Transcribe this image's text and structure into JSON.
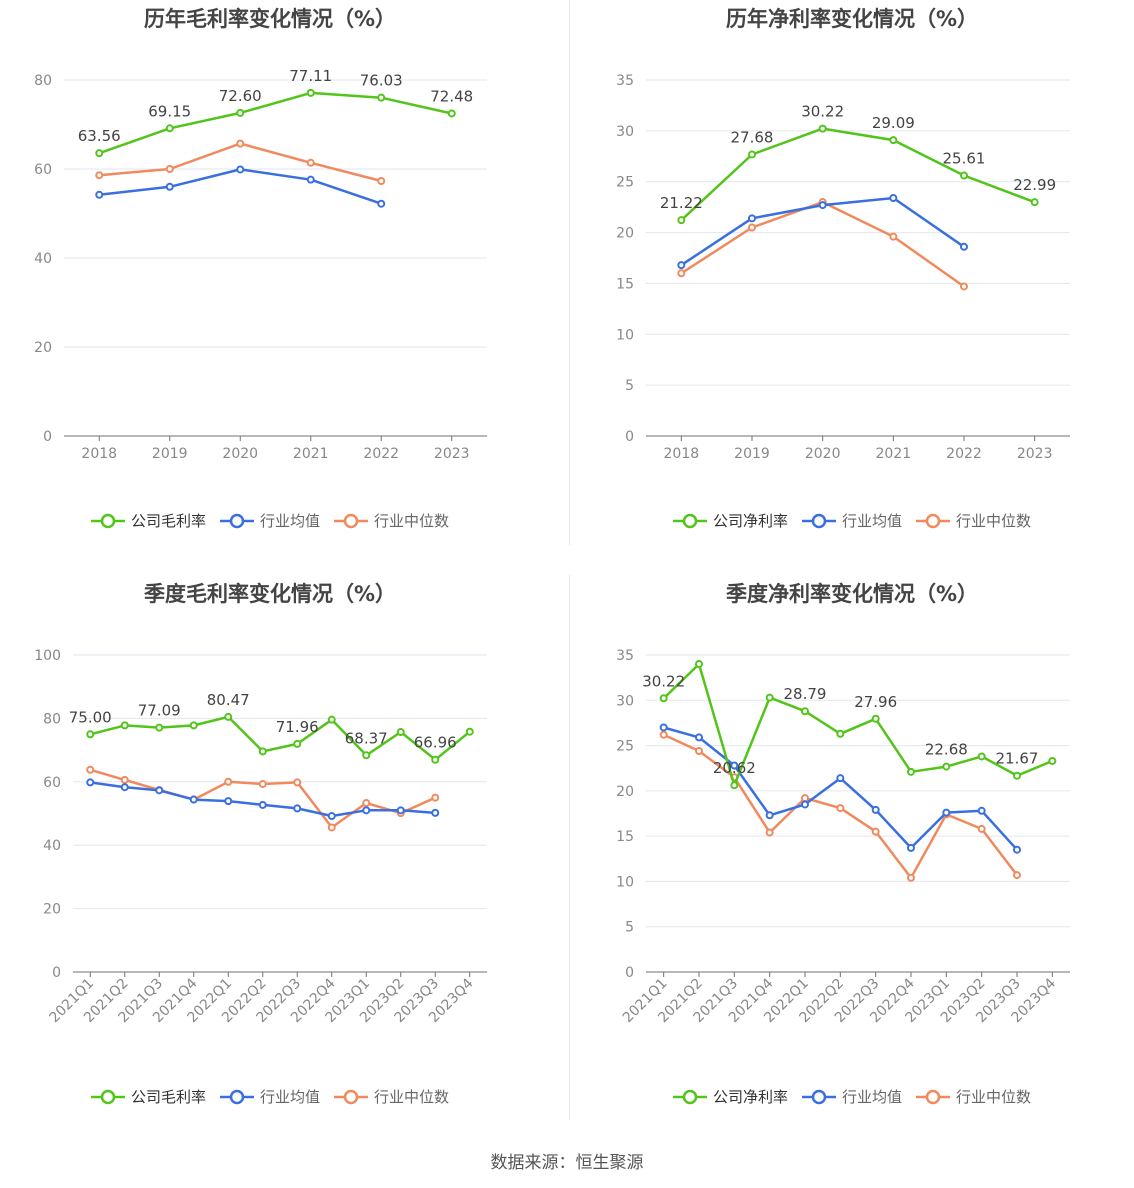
{
  "source": "数据来源：恒生聚源",
  "colors": {
    "company": "#52c41a",
    "average": "#3a6fe0",
    "median": "#f08a5d"
  },
  "chart_data": [
    {
      "type": "line",
      "title": "历年毛利率变化情况（%）",
      "categories": [
        "2018",
        "2019",
        "2020",
        "2021",
        "2022",
        "2023"
      ],
      "ylim": [
        0,
        80
      ],
      "yticks": [
        0,
        20,
        40,
        60,
        80
      ],
      "grid": true,
      "legend_position": "bottom",
      "series": [
        {
          "name": "公司毛利率",
          "role": "company",
          "values": [
            63.56,
            69.15,
            72.6,
            77.11,
            76.03,
            72.48
          ],
          "labels": [
            "63.56",
            "69.15",
            "72.60",
            "77.11",
            "76.03",
            "72.48"
          ]
        },
        {
          "name": "行业均值",
          "role": "average",
          "values": [
            54.2,
            56.0,
            59.9,
            57.6,
            52.2,
            null
          ]
        },
        {
          "name": "行业中位数",
          "role": "median",
          "values": [
            58.6,
            60.0,
            65.7,
            61.4,
            57.3,
            null
          ]
        }
      ]
    },
    {
      "type": "line",
      "title": "历年净利率变化情况（%）",
      "categories": [
        "2018",
        "2019",
        "2020",
        "2021",
        "2022",
        "2023"
      ],
      "ylim": [
        0,
        35
      ],
      "yticks": [
        0,
        5,
        10,
        15,
        20,
        25,
        30,
        35
      ],
      "grid": true,
      "legend_position": "bottom",
      "series": [
        {
          "name": "公司净利率",
          "role": "company",
          "values": [
            21.22,
            27.68,
            30.22,
            29.09,
            25.61,
            22.99
          ],
          "labels": [
            "21.22",
            "27.68",
            "30.22",
            "29.09",
            "25.61",
            "22.99"
          ]
        },
        {
          "name": "行业均值",
          "role": "average",
          "values": [
            16.8,
            21.4,
            22.7,
            23.4,
            18.6,
            null
          ]
        },
        {
          "name": "行业中位数",
          "role": "median",
          "values": [
            16.0,
            20.5,
            23.0,
            19.6,
            14.7,
            null
          ]
        }
      ]
    },
    {
      "type": "line",
      "title": "季度毛利率变化情况（%）",
      "categories": [
        "2021Q1",
        "2021Q2",
        "2021Q3",
        "2021Q4",
        "2022Q1",
        "2022Q2",
        "2022Q3",
        "2022Q4",
        "2023Q1",
        "2023Q2",
        "2023Q3",
        "2023Q4"
      ],
      "ylim": [
        0,
        100
      ],
      "yticks": [
        0,
        20,
        40,
        60,
        80,
        100
      ],
      "grid": true,
      "legend_position": "bottom",
      "series": [
        {
          "name": "公司毛利率",
          "role": "company",
          "values": [
            75.0,
            77.8,
            77.09,
            77.8,
            80.47,
            69.6,
            71.96,
            79.6,
            68.37,
            75.7,
            66.96,
            75.8
          ],
          "labels": [
            "75.00",
            "",
            "77.09",
            "",
            "80.47",
            "",
            "71.96",
            "",
            "68.37",
            "",
            "66.96",
            ""
          ]
        },
        {
          "name": "行业均值",
          "role": "average",
          "values": [
            59.8,
            58.3,
            57.3,
            54.4,
            53.9,
            52.7,
            51.6,
            49.2,
            51.0,
            51.0,
            50.2,
            null
          ]
        },
        {
          "name": "行业中位数",
          "role": "median",
          "values": [
            63.8,
            60.6,
            57.4,
            54.4,
            60.0,
            59.3,
            59.8,
            45.6,
            53.3,
            50.1,
            55.0,
            null
          ]
        }
      ]
    },
    {
      "type": "line",
      "title": "季度净利率变化情况（%）",
      "categories": [
        "2021Q1",
        "2021Q2",
        "2021Q3",
        "2021Q4",
        "2022Q1",
        "2022Q2",
        "2022Q3",
        "2022Q4",
        "2023Q1",
        "2023Q2",
        "2023Q3",
        "2023Q4"
      ],
      "ylim": [
        0,
        35
      ],
      "yticks": [
        0,
        5,
        10,
        15,
        20,
        25,
        30,
        35
      ],
      "grid": true,
      "legend_position": "bottom",
      "series": [
        {
          "name": "公司净利率",
          "role": "company",
          "values": [
            30.22,
            34.0,
            20.62,
            30.3,
            28.79,
            26.3,
            27.96,
            22.1,
            22.68,
            23.8,
            21.67,
            23.3
          ],
          "labels": [
            "30.22",
            "",
            "20.62",
            "",
            "28.79",
            "",
            "27.96",
            "",
            "22.68",
            "",
            "21.67",
            ""
          ]
        },
        {
          "name": "行业均值",
          "role": "average",
          "values": [
            27.0,
            25.9,
            22.8,
            17.3,
            18.5,
            21.4,
            17.9,
            13.7,
            17.6,
            17.8,
            13.5,
            null
          ]
        },
        {
          "name": "行业中位数",
          "role": "median",
          "values": [
            26.2,
            24.4,
            21.5,
            15.4,
            19.2,
            18.1,
            15.5,
            10.4,
            17.4,
            15.8,
            10.7,
            null
          ]
        }
      ]
    }
  ]
}
